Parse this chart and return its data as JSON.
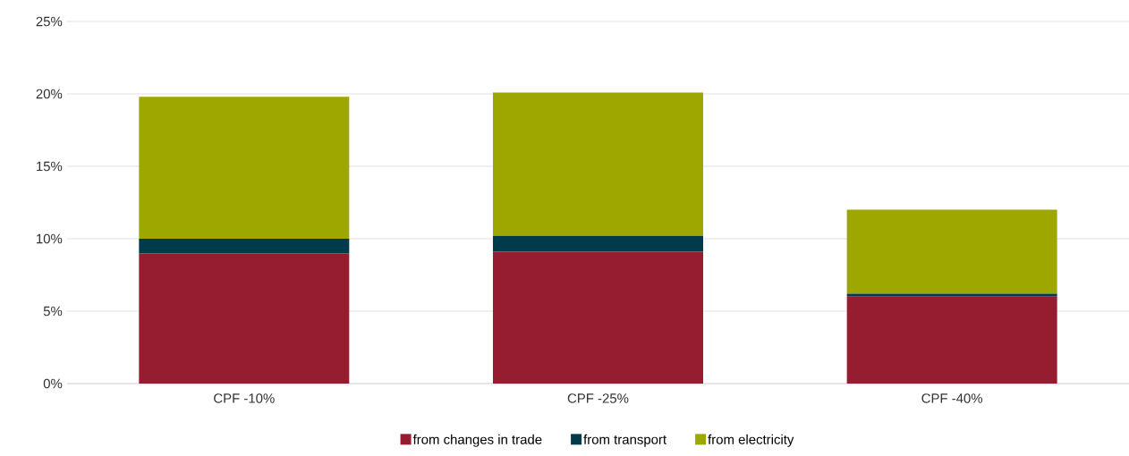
{
  "chart_data": {
    "type": "bar",
    "stacked": true,
    "categories": [
      "CPF -10%",
      "CPF -25%",
      "CPF -40%"
    ],
    "series": [
      {
        "name": "from changes in trade",
        "color": "#961c30",
        "values": [
          9.0,
          9.1,
          6.0
        ]
      },
      {
        "name": "from transport",
        "color": "#003b4c",
        "values": [
          1.0,
          1.1,
          0.2
        ]
      },
      {
        "name": "from electricity",
        "color": "#9da700",
        "values": [
          9.8,
          9.9,
          5.8
        ]
      }
    ],
    "ylim": [
      0,
      25
    ],
    "yticks": [
      {
        "value": 0,
        "label": "0%"
      },
      {
        "value": 5,
        "label": "5%"
      },
      {
        "value": 10,
        "label": "10%"
      },
      {
        "value": 15,
        "label": "15%"
      },
      {
        "value": 20,
        "label": "20%"
      },
      {
        "value": 25,
        "label": "25%"
      }
    ],
    "grid": "y",
    "legend": "bottom"
  }
}
